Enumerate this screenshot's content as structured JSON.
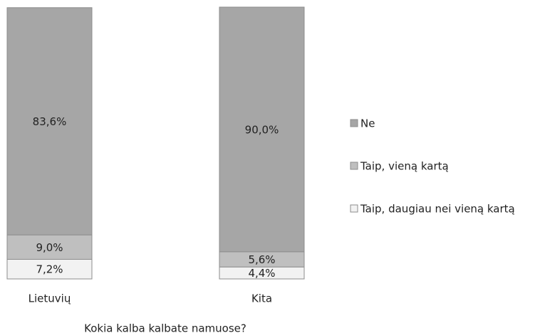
{
  "chart_data": {
    "type": "stacked_bar",
    "x_label": "Kokia kalba kalbate namuose?",
    "categories": [
      "Lietuvių",
      "Kita"
    ],
    "ylim": [
      0,
      100
    ],
    "series": [
      {
        "name": "Taip, daugiau nei vieną kartą",
        "color": "#f2f2f2",
        "values": [
          7.2,
          4.4
        ],
        "value_labels": [
          "7,2%",
          "4,4%"
        ]
      },
      {
        "name": "Taip, vieną kartą",
        "color": "#bfbfbf",
        "values": [
          9.0,
          5.6
        ],
        "value_labels": [
          "9,0%",
          "5,6%"
        ]
      },
      {
        "name": "Ne",
        "color": "#a6a6a6",
        "values": [
          83.6,
          90.0
        ],
        "value_labels": [
          "83,6%",
          "90,0%"
        ]
      }
    ],
    "legend": "right"
  }
}
